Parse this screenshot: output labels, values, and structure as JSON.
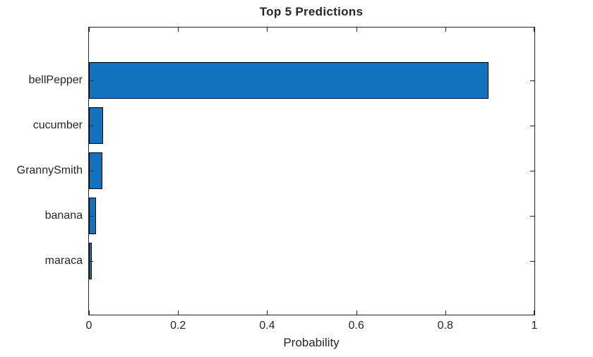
{
  "chart_data": {
    "type": "bar",
    "orientation": "horizontal",
    "title": "Top 5 Predictions",
    "xlabel": "Probability",
    "ylabel": "",
    "categories": [
      "bellPepper",
      "cucumber",
      "GrannySmith",
      "banana",
      "maraca"
    ],
    "values": [
      0.897,
      0.032,
      0.03,
      0.016,
      0.007
    ],
    "xlim": [
      0,
      1
    ],
    "xticks": [
      0,
      0.2,
      0.4,
      0.6,
      0.8,
      1
    ],
    "xtick_labels": [
      "0",
      "0.2",
      "0.4",
      "0.6",
      "0.8",
      "1"
    ],
    "grid": false,
    "legend_position": "none",
    "box": true,
    "tick_direction": "in",
    "colors": {
      "bar_fill": "#1272BD",
      "bar_edge": "#000000",
      "axis": "#262626",
      "text": "#262626",
      "background": "#FFFFFF"
    }
  }
}
